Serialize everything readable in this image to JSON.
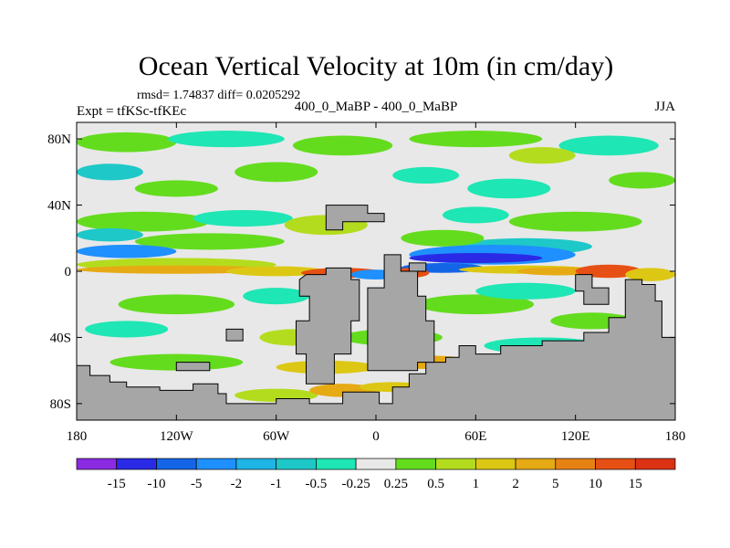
{
  "chart_data": {
    "type": "heatmap",
    "title": "Ocean Vertical Velocity at 10m (in cm/day)",
    "stats_text": "rmsd= 1.74837 diff= 0.0205292",
    "left_label": "Expt = tfKSc-tfKEc",
    "center_label": "400_0_MaBP - 400_0_MaBP",
    "right_label": "JJA",
    "x_range": [
      -180,
      180
    ],
    "y_range": [
      -90,
      90
    ],
    "x_ticks": [
      {
        "value": -180,
        "label": "180"
      },
      {
        "value": -120,
        "label": "120W"
      },
      {
        "value": -60,
        "label": "60W"
      },
      {
        "value": 0,
        "label": "0"
      },
      {
        "value": 60,
        "label": "60E"
      },
      {
        "value": 120,
        "label": "120E"
      },
      {
        "value": 180,
        "label": "180"
      }
    ],
    "y_ticks": [
      {
        "value": 80,
        "label": "80N"
      },
      {
        "value": 40,
        "label": "40N"
      },
      {
        "value": 0,
        "label": "0"
      },
      {
        "value": -40,
        "label": "40S"
      },
      {
        "value": -80,
        "label": "80S"
      }
    ],
    "colorbar": {
      "labels": [
        "-15",
        "-10",
        "-5",
        "-2",
        "-1",
        "-0.5",
        "-0.25",
        "0.25",
        "0.5",
        "1",
        "2",
        "5",
        "10",
        "15"
      ],
      "colors": [
        "#8a2be2",
        "#2a2ae6",
        "#1464e6",
        "#1e90ff",
        "#1eb4e6",
        "#1ec8c8",
        "#1ee6b4",
        "#e8e8e8",
        "#64dc1e",
        "#b4dc1e",
        "#dcc814",
        "#e6aa14",
        "#e68214",
        "#e65014",
        "#dc3214"
      ]
    },
    "land_color": "#a6a6a6",
    "ocean_color": "#e8e8e8"
  }
}
